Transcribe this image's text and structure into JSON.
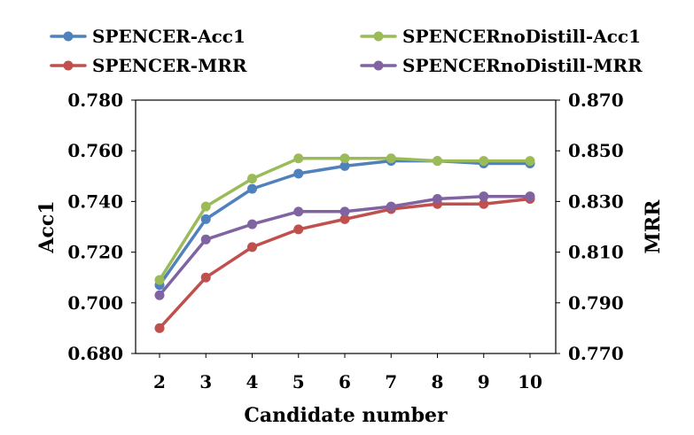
{
  "chart_data": {
    "type": "line",
    "categories": [
      "2",
      "3",
      "4",
      "5",
      "6",
      "7",
      "8",
      "9",
      "10"
    ],
    "xlabel": "Candidate number",
    "ylabel_left": "Acc1",
    "ylabel_right": "MRR",
    "ylim_left": [
      0.68,
      0.78
    ],
    "ylim_right": [
      0.77,
      0.87
    ],
    "yticks_left": [
      "0.680",
      "0.700",
      "0.720",
      "0.740",
      "0.760",
      "0.780"
    ],
    "yticks_right": [
      "0.770",
      "0.790",
      "0.810",
      "0.830",
      "0.850",
      "0.870"
    ],
    "grid": false,
    "legend_position": "top",
    "series": [
      {
        "name": "SPENCER-Acc1",
        "axis": "left",
        "color": "#4f81bd",
        "values": [
          0.707,
          0.733,
          0.745,
          0.751,
          0.754,
          0.756,
          0.756,
          0.755,
          0.755
        ]
      },
      {
        "name": "SPENCERnoDistill-Acc1",
        "axis": "left",
        "color": "#9bbb59",
        "values": [
          0.709,
          0.738,
          0.749,
          0.757,
          0.757,
          0.757,
          0.756,
          0.756,
          0.756
        ]
      },
      {
        "name": "SPENCER-MRR",
        "axis": "right",
        "color": "#c0504d",
        "values": [
          0.78,
          0.8,
          0.812,
          0.819,
          0.823,
          0.827,
          0.829,
          0.829,
          0.831
        ]
      },
      {
        "name": "SPENCERnoDistill-MRR",
        "axis": "right",
        "color": "#8064a2",
        "values": [
          0.793,
          0.815,
          0.821,
          0.826,
          0.826,
          0.828,
          0.831,
          0.832,
          0.832
        ]
      }
    ]
  }
}
